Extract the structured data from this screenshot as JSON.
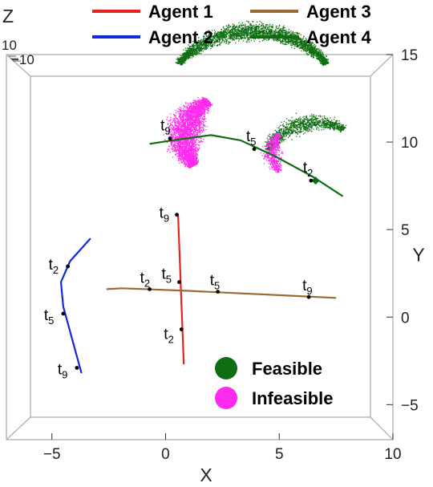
{
  "chart_data": {
    "type": "scatter",
    "view": "3D box viewed from the top (Z toward viewer), perspective",
    "xlabel": "X",
    "ylabel": "Y",
    "zlabel": "Z",
    "xlim": [
      -7,
      10
    ],
    "ylim": [
      -7,
      15
    ],
    "xticks": [
      -5,
      0,
      5,
      10
    ],
    "yticks": [
      -5,
      0,
      5,
      10,
      15
    ],
    "z_tick_labels": [
      "10",
      "−10"
    ],
    "colors": {
      "agent1": "#e3231c",
      "agent2": "#1428dc",
      "agent3": "#9a6a35",
      "agent4": "#0f6e12",
      "feasible": "#0f6e12",
      "infeasible": "#ff2bee",
      "box": "#b4b4b4"
    },
    "legend": {
      "placement": "top",
      "lines": [
        {
          "key": "agent1",
          "label": "Agent 1"
        },
        {
          "key": "agent3",
          "label": "Agent 3"
        },
        {
          "key": "agent2",
          "label": "Agent 2"
        },
        {
          "key": "agent4",
          "label": "Agent 4"
        }
      ],
      "markers": [
        {
          "key": "feasible",
          "label": "Feasible"
        },
        {
          "key": "infeasible",
          "label": "Infeasible"
        }
      ]
    },
    "series": [
      {
        "name": "Agent 1",
        "key": "agent1",
        "points": [
          [
            0.55,
            5.8
          ],
          [
            0.8,
            -2.7
          ]
        ]
      },
      {
        "name": "Agent 2",
        "key": "agent2",
        "points": [
          [
            -3.3,
            4.5
          ],
          [
            -4.2,
            3.2
          ],
          [
            -4.6,
            2.0
          ],
          [
            -4.5,
            0.6
          ],
          [
            -3.7,
            -3.2
          ]
        ]
      },
      {
        "name": "Agent 3",
        "key": "agent3",
        "points": [
          [
            -2.6,
            1.6
          ],
          [
            -1.9,
            1.65
          ],
          [
            1.0,
            1.5
          ],
          [
            7.5,
            1.1
          ]
        ]
      },
      {
        "name": "Agent 4",
        "key": "agent4",
        "points": [
          [
            -0.7,
            9.9
          ],
          [
            0.3,
            10.1
          ],
          [
            2.0,
            10.4
          ],
          [
            3.3,
            10.1
          ],
          [
            4.8,
            9.2
          ],
          [
            6.5,
            8.0
          ],
          [
            7.8,
            6.9
          ]
        ]
      }
    ],
    "time_markers": [
      {
        "agent": "agent1",
        "sub": "9",
        "x": 0.5,
        "y": 5.85
      },
      {
        "agent": "agent1",
        "sub": "5",
        "x": 0.6,
        "y": 2.0
      },
      {
        "agent": "agent1",
        "sub": "2",
        "x": 0.7,
        "y": -0.7
      },
      {
        "agent": "agent2",
        "sub": "2",
        "x": -4.3,
        "y": 2.9
      },
      {
        "agent": "agent2",
        "sub": "5",
        "x": -4.5,
        "y": 0.2
      },
      {
        "agent": "agent2",
        "sub": "9",
        "x": -3.9,
        "y": -2.9
      },
      {
        "agent": "agent3",
        "sub": "2",
        "x": -0.7,
        "y": 1.6
      },
      {
        "agent": "agent3",
        "sub": "5",
        "x": 2.3,
        "y": 1.45
      },
      {
        "agent": "agent3",
        "sub": "9",
        "x": 6.3,
        "y": 1.15
      },
      {
        "agent": "agent4",
        "sub": "9",
        "x": 0.2,
        "y": 10.2
      },
      {
        "agent": "agent4",
        "sub": "5",
        "x": 3.9,
        "y": 9.6
      },
      {
        "agent": "agent4",
        "sub": "2",
        "x": 6.4,
        "y": 7.8
      }
    ],
    "regions": [
      {
        "label": "Feasible",
        "key": "feasible",
        "center": [
          3.8,
          12.6
        ],
        "inner_radius": 3.2,
        "outer_radius": 4.3,
        "angle_deg": [
          30,
          150
        ],
        "points": 3000
      },
      {
        "label": "Feasible",
        "key": "feasible",
        "center": [
          6.6,
          9.0
        ],
        "inner_radius": 1.6,
        "outer_radius": 2.7,
        "angle_deg": [
          55,
          165
        ],
        "points": 1200
      },
      {
        "label": "Infeasible",
        "key": "infeasible",
        "center": [
          3.4,
          10.2
        ],
        "inner_radius": 1.8,
        "outer_radius": 3.5,
        "angle_deg": [
          125,
          215
        ],
        "points": 3400
      },
      {
        "label": "Infeasible",
        "key": "infeasible",
        "center": [
          6.5,
          9.4
        ],
        "inner_radius": 1.4,
        "outer_radius": 2.3,
        "angle_deg": [
          145,
          215
        ],
        "points": 600
      }
    ]
  }
}
